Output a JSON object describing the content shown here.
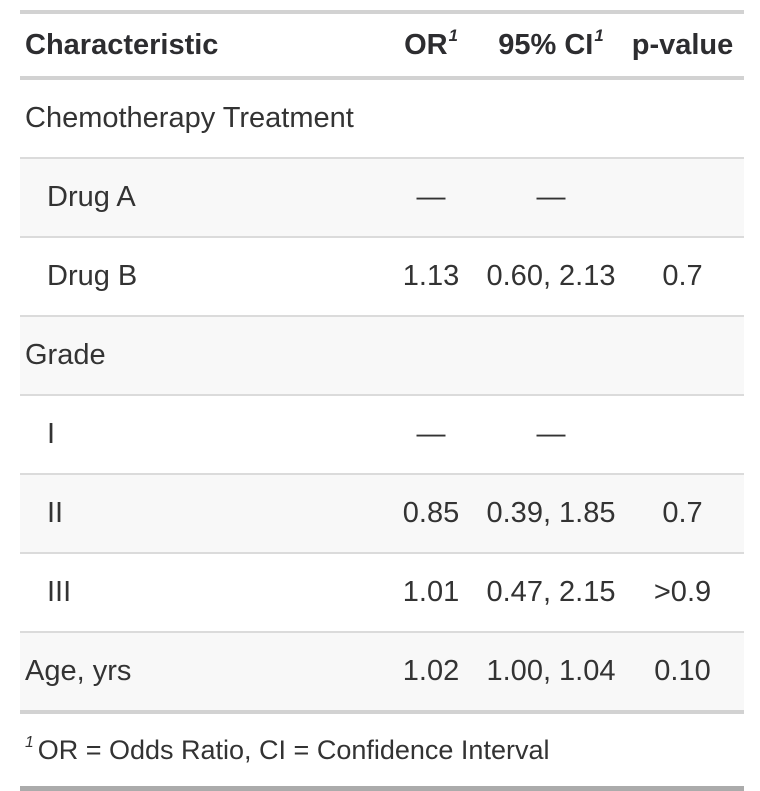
{
  "table": {
    "columns": {
      "characteristic": {
        "label": "Characteristic"
      },
      "or": {
        "label": "OR",
        "sup": "1"
      },
      "ci": {
        "label": "95% CI",
        "sup": "1"
      },
      "p": {
        "label": "p-value"
      }
    },
    "rows": [
      {
        "label": "Chemotherapy Treatment",
        "indent": false,
        "or": "",
        "ci": "",
        "p": ""
      },
      {
        "label": "Drug A",
        "indent": true,
        "or": "—",
        "ci": "—",
        "p": ""
      },
      {
        "label": "Drug B",
        "indent": true,
        "or": "1.13",
        "ci": "0.60, 2.13",
        "p": "0.7"
      },
      {
        "label": "Grade",
        "indent": false,
        "or": "",
        "ci": "",
        "p": ""
      },
      {
        "label": "I",
        "indent": true,
        "or": "—",
        "ci": "—",
        "p": ""
      },
      {
        "label": "II",
        "indent": true,
        "or": "0.85",
        "ci": "0.39, 1.85",
        "p": "0.7"
      },
      {
        "label": "III",
        "indent": true,
        "or": "1.01",
        "ci": "0.47, 2.15",
        "p": ">0.9"
      },
      {
        "label": "Age, yrs",
        "indent": false,
        "or": "1.02",
        "ci": "1.00, 1.04",
        "p": "0.10"
      }
    ],
    "footnote": {
      "marker": "1",
      "text": "OR = Odds Ratio, CI = Confidence Interval"
    }
  },
  "colors": {
    "text": "#333333",
    "header_text": "#2d2d30",
    "stripe_background": "#f8f8f8",
    "separator_border": "#dbdbdb",
    "section_border": "#d2d2d2",
    "bottom_border": "#ababab"
  }
}
